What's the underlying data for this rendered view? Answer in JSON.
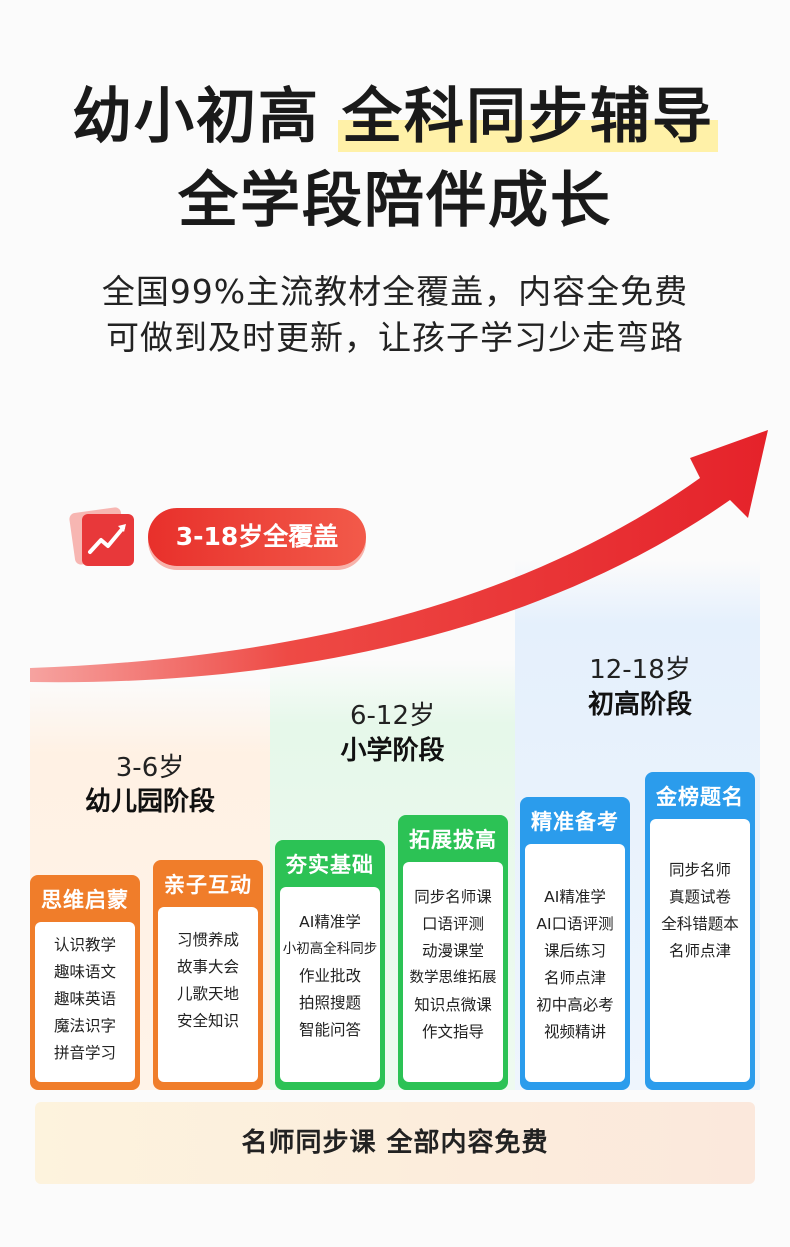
{
  "headline": {
    "line1_plain": "幼小初高",
    "line1_highlight": "全科同步辅导",
    "line2": "全学段陪伴成长"
  },
  "subtitle": {
    "line1": "全国99%主流教材全覆盖，内容全免费",
    "line2": "可做到及时更新，让孩子学习少走弯路"
  },
  "badge": {
    "icon": "growth-chart-icon",
    "label": "3-18岁全覆盖"
  },
  "stages": [
    {
      "age": "3-6岁",
      "name": "幼儿园阶段",
      "color": "#f07d2a",
      "cards": [
        {
          "title": "思维启蒙",
          "items": [
            "认识教学",
            "趣味语文",
            "趣味英语",
            "魔法识字",
            "拼音学习"
          ]
        },
        {
          "title": "亲子互动",
          "items": [
            "习惯养成",
            "故事大会",
            "儿歌天地",
            "安全知识"
          ]
        }
      ]
    },
    {
      "age": "6-12岁",
      "name": "小学阶段",
      "color": "#2cc255",
      "cards": [
        {
          "title": "夯实基础",
          "items": [
            "AI精准学",
            "小初高全科同步",
            "作业批改",
            "拍照搜题",
            "智能问答"
          ]
        },
        {
          "title": "拓展拔高",
          "items": [
            "同步名师课",
            "口语评测",
            "动漫课堂",
            "数学思维拓展",
            "知识点微课",
            "作文指导"
          ]
        }
      ]
    },
    {
      "age": "12-18岁",
      "name": "初高阶段",
      "color": "#2b9cec",
      "cards": [
        {
          "title": "精准备考",
          "items": [
            "AI精准学",
            "AI口语评测",
            "课后练习",
            "名师点津",
            "初中高必考",
            "视频精讲"
          ]
        },
        {
          "title": "金榜题名",
          "items": [
            "同步名师",
            "真题试卷",
            "全科错题本",
            "名师点津"
          ]
        }
      ]
    }
  ],
  "banner": {
    "label": "名师同步课 全部内容免费"
  }
}
